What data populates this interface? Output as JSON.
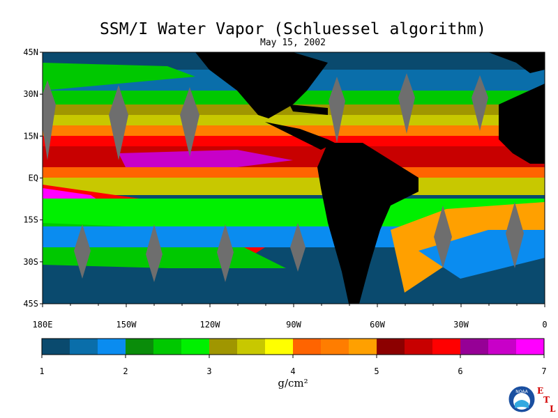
{
  "header": {
    "title": "SSM/I Water Vapor (Schluessel algorithm)",
    "date": "May 15, 2002"
  },
  "map": {
    "lat_labels": [
      "45N",
      "30N",
      "15N",
      "EQ",
      "15S",
      "30S",
      "45S"
    ],
    "lat_values": [
      45,
      30,
      15,
      0,
      -15,
      -30,
      -45
    ],
    "lon_labels": [
      "180E",
      "150W",
      "120W",
      "90W",
      "60W",
      "30W",
      "0"
    ],
    "lon_values": [
      -180,
      -150,
      -120,
      -90,
      -60,
      -30,
      0
    ],
    "lat_range": [
      -45,
      45
    ],
    "lon_range": [
      -180,
      0
    ],
    "land_color": "#000000",
    "no_data_color": "#6e6e6e"
  },
  "colorbar": {
    "tick_labels": [
      "1",
      "2",
      "3",
      "4",
      "5",
      "6",
      "7"
    ],
    "range": [
      1,
      7
    ],
    "unit": "g/cm²",
    "colors": [
      "#0a4a6e",
      "#0a6eaa",
      "#0a8cf0",
      "#0a8c0a",
      "#00c800",
      "#00f000",
      "#a09600",
      "#c8c800",
      "#ffff00",
      "#ff6400",
      "#ff7d00",
      "#ffa000",
      "#8c0000",
      "#c80000",
      "#ff0000",
      "#960096",
      "#c800c8",
      "#ff00ff"
    ]
  },
  "logo": {
    "agency_text": "NOAA",
    "lab_letters": [
      "E",
      "T",
      "L"
    ]
  }
}
